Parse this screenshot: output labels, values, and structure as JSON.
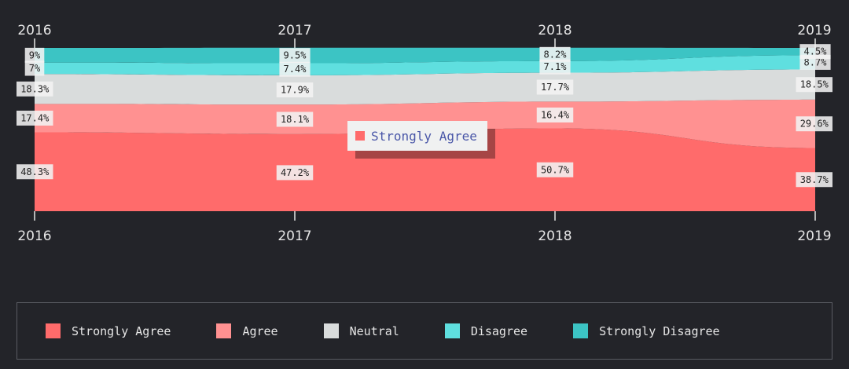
{
  "chart_data": {
    "type": "area",
    "stacked": true,
    "normalized": true,
    "x": [
      "2016",
      "2017",
      "2018",
      "2019"
    ],
    "series": [
      {
        "name": "Strongly Agree",
        "color": "#ff6b6b",
        "values": [
          48.3,
          47.2,
          50.7,
          38.7
        ]
      },
      {
        "name": "Agree",
        "color": "#ff9191",
        "values": [
          17.4,
          18.1,
          16.4,
          29.6
        ]
      },
      {
        "name": "Neutral",
        "color": "#d9dcdc",
        "values": [
          18.3,
          17.9,
          17.7,
          18.5
        ]
      },
      {
        "name": "Disagree",
        "color": "#5fdfdf",
        "values": [
          7,
          7.4,
          7.1,
          8.7
        ]
      },
      {
        "name": "Strongly Disagree",
        "color": "#3cc4c4",
        "values": [
          9,
          9.5,
          8.2,
          4.5
        ]
      }
    ],
    "labels": {
      "Strongly Agree": [
        "48.3%",
        "47.2%",
        "50.7%",
        "38.7%"
      ],
      "Agree": [
        "17.4%",
        "18.1%",
        "16.4%",
        "29.6%"
      ],
      "Neutral": [
        "18.3%",
        "17.9%",
        "17.7%",
        "18.5%"
      ],
      "Disagree": [
        "7%",
        "7.4%",
        "7.1%",
        "8.7%"
      ],
      "Strongly Disagree": [
        "9%",
        "9.5%",
        "8.2%",
        "4.5%"
      ]
    },
    "ylim": [
      0,
      100
    ],
    "grid": false,
    "legend_position": "bottom"
  },
  "tooltip": {
    "label": "Strongly Agree",
    "color": "#ff6b6b"
  },
  "legend": {
    "items": [
      {
        "label": "Strongly Agree",
        "color": "#ff6b6b"
      },
      {
        "label": "Agree",
        "color": "#ff9191"
      },
      {
        "label": "Neutral",
        "color": "#d9dcdc"
      },
      {
        "label": "Disagree",
        "color": "#5fdfdf"
      },
      {
        "label": "Strongly Disagree",
        "color": "#3cc4c4"
      }
    ]
  }
}
